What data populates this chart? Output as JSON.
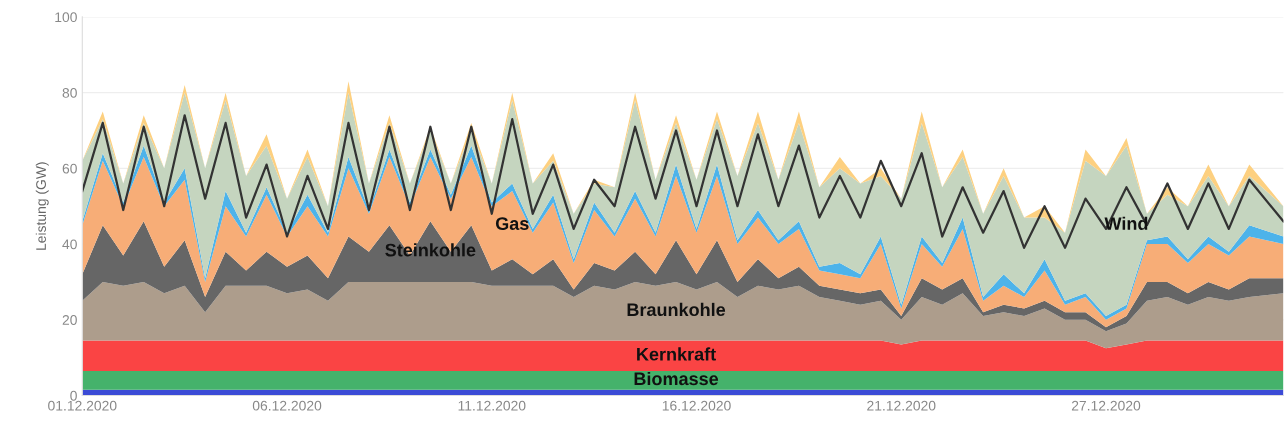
{
  "chart_data": {
    "type": "area",
    "stacked": true,
    "ylabel": "Leistung (GW)",
    "ylim": [
      0,
      100
    ],
    "yticks": [
      0,
      20,
      40,
      60,
      80,
      100
    ],
    "grid": "y",
    "xlim": [
      "2020-12-01T00:00",
      "2020-12-30T08:00"
    ],
    "xticks": [
      {
        "value": "2020-12-01",
        "label": "01.12.2020"
      },
      {
        "value": "2020-12-06",
        "label": "06.12.2020"
      },
      {
        "value": "2020-12-11",
        "label": "11.12.2020"
      },
      {
        "value": "2020-12-16",
        "label": "16.12.2020"
      },
      {
        "value": "2020-12-21",
        "label": "21.12.2020"
      },
      {
        "value": "2020-12-26",
        "label": "27.12.2020"
      }
    ],
    "x": [
      "2020-12-01T00:00",
      "2020-12-01T12:00",
      "2020-12-02T00:00",
      "2020-12-02T12:00",
      "2020-12-03T00:00",
      "2020-12-03T12:00",
      "2020-12-04T00:00",
      "2020-12-04T12:00",
      "2020-12-05T00:00",
      "2020-12-05T12:00",
      "2020-12-06T00:00",
      "2020-12-06T12:00",
      "2020-12-07T00:00",
      "2020-12-07T12:00",
      "2020-12-08T00:00",
      "2020-12-08T12:00",
      "2020-12-09T00:00",
      "2020-12-09T12:00",
      "2020-12-10T00:00",
      "2020-12-10T12:00",
      "2020-12-11T00:00",
      "2020-12-11T12:00",
      "2020-12-12T00:00",
      "2020-12-12T12:00",
      "2020-12-13T00:00",
      "2020-12-13T12:00",
      "2020-12-14T00:00",
      "2020-12-14T12:00",
      "2020-12-15T00:00",
      "2020-12-15T12:00",
      "2020-12-16T00:00",
      "2020-12-16T12:00",
      "2020-12-17T00:00",
      "2020-12-17T12:00",
      "2020-12-18T00:00",
      "2020-12-18T12:00",
      "2020-12-19T00:00",
      "2020-12-19T12:00",
      "2020-12-20T00:00",
      "2020-12-20T12:00",
      "2020-12-21T00:00",
      "2020-12-21T12:00",
      "2020-12-22T00:00",
      "2020-12-22T12:00",
      "2020-12-23T00:00",
      "2020-12-23T12:00",
      "2020-12-24T00:00",
      "2020-12-24T12:00",
      "2020-12-25T00:00",
      "2020-12-25T12:00",
      "2020-12-26T00:00",
      "2020-12-26T12:00",
      "2020-12-27T00:00",
      "2020-12-27T12:00",
      "2020-12-28T00:00",
      "2020-12-28T12:00",
      "2020-12-29T00:00",
      "2020-12-29T12:00",
      "2020-12-30T08:00"
    ],
    "series": [
      {
        "color": "#3b4bd6",
        "values": [
          1.5,
          1.5,
          1.5,
          1.5,
          1.5,
          1.5,
          1.5,
          1.5,
          1.5,
          1.5,
          1.5,
          1.5,
          1.5,
          1.5,
          1.5,
          1.5,
          1.5,
          1.5,
          1.5,
          1.5,
          1.5,
          1.5,
          1.5,
          1.5,
          1.5,
          1.5,
          1.5,
          1.5,
          1.5,
          1.5,
          1.5,
          1.5,
          1.5,
          1.5,
          1.5,
          1.5,
          1.5,
          1.5,
          1.5,
          1.5,
          1.5,
          1.5,
          1.5,
          1.5,
          1.5,
          1.5,
          1.5,
          1.5,
          1.5,
          1.5,
          1.5,
          1.5,
          1.5,
          1.5,
          1.5,
          1.5,
          1.5,
          1.5,
          1.5
        ]
      },
      {
        "name": "Biomasse",
        "color": "#45b26b",
        "values": [
          5,
          5,
          5,
          5,
          5,
          5,
          5,
          5,
          5,
          5,
          5,
          5,
          5,
          5,
          5,
          5,
          5,
          5,
          5,
          5,
          5,
          5,
          5,
          5,
          5,
          5,
          5,
          5,
          5,
          5,
          5,
          5,
          5,
          5,
          5,
          5,
          5,
          5,
          5,
          5,
          5,
          5,
          5,
          5,
          5,
          5,
          5,
          5,
          5,
          5,
          5,
          5,
          5,
          5,
          5,
          5,
          5,
          5,
          5
        ]
      },
      {
        "name": "Kernkraft",
        "color": "#fa4444",
        "values": [
          8,
          8,
          8,
          8,
          8,
          8,
          8,
          8,
          8,
          8,
          8,
          8,
          8,
          8,
          8,
          8,
          8,
          8,
          8,
          8,
          8,
          8,
          8,
          8,
          8,
          8,
          8,
          8,
          8,
          8,
          8,
          8,
          8,
          8,
          8,
          8,
          8,
          8,
          8,
          8,
          7,
          8,
          8,
          8,
          8,
          8,
          8,
          8,
          8,
          8,
          6,
          7,
          8,
          8,
          8,
          8,
          8,
          8,
          8
        ]
      },
      {
        "name": "Braunkohle",
        "color": "#ad9d8c",
        "values": [
          10.5,
          15.5,
          14.5,
          15.5,
          12.5,
          14.5,
          7.5,
          14.5,
          14.5,
          14.5,
          12.5,
          13.5,
          10.5,
          15.5,
          15.5,
          15.5,
          15.5,
          15.5,
          15.5,
          15.5,
          14.5,
          14.5,
          14.5,
          14.5,
          11.5,
          14.5,
          13.5,
          15.5,
          14.5,
          15.5,
          13.5,
          15.5,
          11.5,
          14.5,
          13.5,
          14.5,
          11.5,
          10.5,
          9.5,
          10.5,
          6.5,
          11.5,
          9.5,
          12.5,
          6.5,
          7.5,
          6.5,
          8.5,
          5.5,
          5.5,
          4.5,
          5.5,
          10.5,
          11.5,
          9.5,
          11.5,
          10.5,
          11.5,
          12.5
        ]
      },
      {
        "name": "Steinkohle",
        "color": "#666666",
        "values": [
          7,
          15,
          8,
          16,
          7,
          12,
          4,
          9,
          4,
          9,
          7,
          9,
          6,
          12,
          8,
          15,
          7,
          16,
          8,
          15,
          4,
          7,
          3,
          7,
          2,
          6,
          5,
          8,
          3,
          11,
          4,
          11,
          4,
          7,
          3,
          5,
          3,
          3,
          3,
          3,
          1,
          5,
          4,
          4,
          1,
          2,
          2,
          2,
          2,
          2,
          1,
          2,
          5,
          4,
          3,
          4,
          3,
          5,
          4
        ]
      },
      {
        "name": "Gas",
        "color": "#f7ad77",
        "values": [
          13,
          17,
          13,
          17,
          16,
          16,
          4,
          12,
          9,
          15,
          8,
          13,
          11,
          18,
          10,
          18,
          13,
          17,
          14,
          18,
          17,
          18,
          11,
          15,
          7,
          14,
          9,
          14,
          10,
          17,
          11,
          17,
          10,
          11,
          9,
          10,
          4,
          4,
          4,
          12,
          2,
          9,
          6,
          13,
          3,
          5,
          3,
          8,
          2,
          4,
          2,
          2,
          10,
          10,
          8,
          10,
          9,
          11,
          9
        ]
      },
      {
        "color": "#4db3ea",
        "values": [
          1,
          2,
          1,
          3,
          1,
          3,
          1,
          4,
          1,
          2,
          1,
          3,
          1,
          3,
          1,
          2,
          1,
          2,
          1,
          3,
          1,
          2,
          1,
          2,
          1,
          2,
          1,
          2,
          1,
          3,
          1,
          3,
          1,
          2,
          1,
          2,
          1,
          3,
          1,
          2,
          1,
          2,
          1,
          3,
          1,
          3,
          1,
          3,
          1,
          1,
          1,
          1,
          1,
          2,
          1,
          2,
          1,
          3,
          2
        ]
      },
      {
        "name": "Wind",
        "color": "#c5d5bf",
        "values": [
          16,
          9,
          5,
          6,
          9,
          20,
          29,
          24,
          15,
          11,
          9,
          10,
          7,
          17,
          7,
          7,
          5,
          5,
          3,
          4,
          5,
          22,
          12,
          9,
          12,
          5,
          12,
          24,
          14,
          11,
          13,
          12,
          17,
          23,
          16,
          26,
          21,
          25,
          24,
          16,
          28,
          30,
          20,
          16,
          22,
          26,
          20,
          11,
          18,
          35,
          37,
          42,
          7,
          11,
          14,
          16,
          12,
          13,
          8
        ]
      },
      {
        "color": "#fdd080",
        "values": [
          0,
          2,
          0,
          2,
          0,
          2,
          0,
          2,
          0,
          3,
          0,
          2,
          0,
          3,
          0,
          2,
          0,
          1,
          0,
          2,
          0,
          2,
          0,
          2,
          0,
          1,
          0,
          2,
          0,
          2,
          0,
          2,
          0,
          3,
          0,
          3,
          0,
          3,
          0,
          2,
          0,
          3,
          0,
          2,
          0,
          2,
          0,
          3,
          0,
          3,
          0,
          2,
          0,
          2,
          0,
          3,
          0,
          3,
          0
        ]
      },
      {
        "type": "line",
        "color": "#333333",
        "line_style": "solid",
        "values": [
          54,
          72,
          49,
          71,
          50,
          74,
          52,
          72,
          47,
          61,
          42,
          58,
          44,
          72,
          49,
          71,
          49,
          71,
          49,
          71,
          48,
          73,
          48,
          61,
          44,
          57,
          50,
          71,
          52,
          70,
          50,
          70,
          50,
          69,
          50,
          66,
          47,
          58,
          47,
          62,
          50,
          64,
          42,
          55,
          43,
          54,
          39,
          50,
          39,
          52,
          44,
          55,
          45,
          56,
          44,
          56,
          44,
          57,
          46
        ]
      }
    ]
  }
}
